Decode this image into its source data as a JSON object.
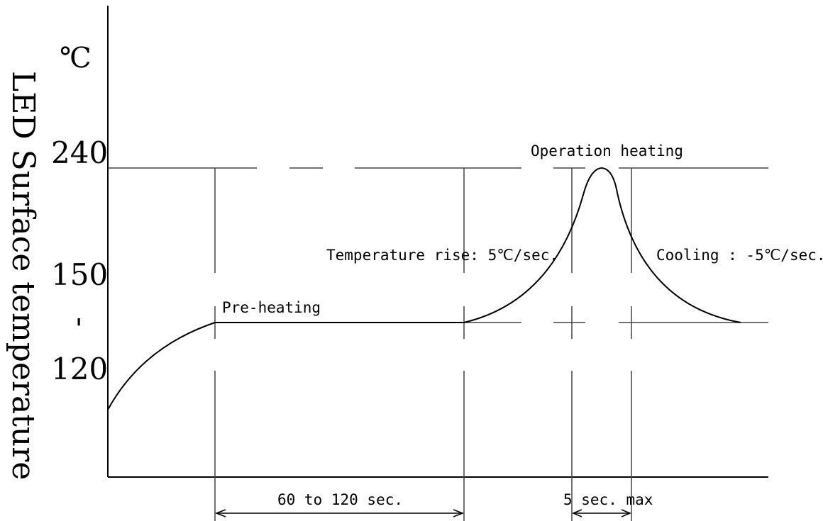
{
  "y_axis": {
    "label": "LED Surface temperature",
    "unit": "℃",
    "ticks": [
      {
        "text": "240",
        "name": "tick-240"
      },
      {
        "text": "150",
        "name": "tick-150"
      },
      {
        "text": "120",
        "name": "tick-120"
      }
    ],
    "range_mark": "-"
  },
  "annotations": {
    "preheating": "Pre-heating",
    "operation_heating": "Operation heating",
    "temperature_rise": "Temperature rise: 5℃/sec.",
    "cooling": "Cooling : -5℃/sec."
  },
  "durations": {
    "preheat_duration": "60 to 120 sec.",
    "peak_duration": "5 sec. max"
  },
  "colors": {
    "line": "#000000",
    "guide": "#444444",
    "background": "#ffffff"
  }
}
